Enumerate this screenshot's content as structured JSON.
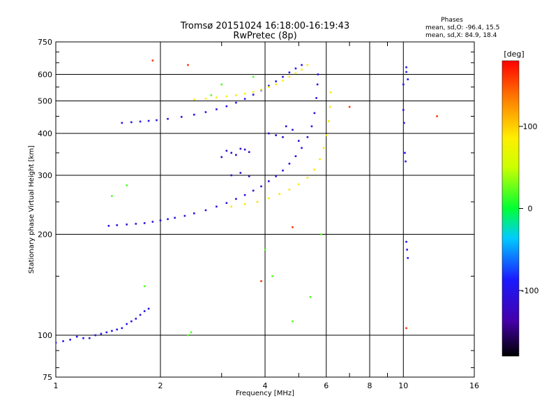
{
  "chart_data": {
    "type": "scatter",
    "title": "Tromsø 20151024 16:18:00-16:19:43",
    "subtitle": "RwPretec (8p)",
    "stats": {
      "heading": "Phases",
      "line_o": "mean, sd,O:  -96.4, 15.5",
      "line_x": "mean, sd,X:  84.9, 18.4"
    },
    "xlabel": "Frequency [MHz]",
    "ylabel": "Stationary phase Virtual Height [km]",
    "x_scale": "log",
    "y_scale": "log",
    "xlim": [
      1,
      16
    ],
    "ylim": [
      75,
      750
    ],
    "x_ticks": [
      1,
      2,
      4,
      6,
      8,
      10,
      16
    ],
    "x_tick_labels": [
      "1",
      "2",
      "4",
      "6",
      "8",
      "10",
      "16"
    ],
    "x_minor_ticks": [
      3,
      5,
      7,
      9
    ],
    "y_ticks": [
      75,
      100,
      200,
      300,
      400,
      500,
      600,
      750
    ],
    "y_tick_labels": [
      "75",
      "100",
      "200",
      "300",
      "400",
      "500",
      "600",
      "750"
    ],
    "grid": true,
    "colorbar": {
      "label": "[deg]",
      "range": [
        -180,
        180
      ],
      "ticks": [
        -100,
        0,
        100
      ],
      "tick_labels": [
        "-100",
        "0",
        "100"
      ]
    },
    "series": [
      {
        "color_value": -100,
        "x": [
          1.0,
          1.05,
          1.1,
          1.15,
          1.2,
          1.25,
          1.3,
          1.35,
          1.4,
          1.45,
          1.5,
          1.55,
          1.6,
          1.65,
          1.7,
          1.75,
          1.8,
          1.85
        ],
        "y": [
          95,
          96,
          97,
          99,
          98,
          98,
          100,
          101,
          102,
          103,
          104,
          105,
          108,
          110,
          112,
          115,
          118,
          120
        ]
      },
      {
        "color_value": -105,
        "x": [
          1.42,
          1.5,
          1.6,
          1.7,
          1.8,
          1.9,
          2.0,
          2.1,
          2.2,
          2.35,
          2.5,
          2.7,
          2.9,
          3.1,
          3.3,
          3.5,
          3.7,
          3.9,
          4.1,
          4.3,
          4.5,
          4.7,
          4.9,
          5.1,
          5.3,
          5.45,
          5.55,
          5.62,
          5.66,
          5.68
        ],
        "y": [
          212,
          213,
          214,
          215,
          216,
          218,
          220,
          222,
          224,
          227,
          231,
          236,
          242,
          248,
          255,
          262,
          270,
          278,
          288,
          298,
          310,
          325,
          342,
          362,
          390,
          420,
          460,
          510,
          560,
          600
        ]
      },
      {
        "color_value": 90,
        "x": [
          3.2,
          3.5,
          3.8,
          4.1,
          4.4,
          4.7,
          5.0,
          5.3,
          5.55,
          5.75,
          5.9,
          6.0,
          6.1,
          6.15,
          6.18
        ],
        "y": [
          242,
          246,
          250,
          256,
          264,
          272,
          282,
          295,
          312,
          335,
          362,
          395,
          435,
          480,
          530
        ]
      },
      {
        "color_value": -100,
        "x": [
          1.55,
          1.65,
          1.75,
          1.85,
          1.95,
          2.1,
          2.3,
          2.5,
          2.7,
          2.9,
          3.1,
          3.3,
          3.5,
          3.7,
          3.9,
          4.1,
          4.3,
          4.5,
          4.7,
          4.9,
          5.1
        ],
        "y": [
          430,
          432,
          434,
          436,
          438,
          442,
          448,
          455,
          463,
          472,
          482,
          494,
          507,
          522,
          538,
          555,
          572,
          590,
          608,
          625,
          640
        ]
      },
      {
        "color_value": 85,
        "x": [
          2.5,
          2.7,
          2.9,
          3.1,
          3.3,
          3.5,
          3.7,
          3.9,
          4.1,
          4.3,
          4.5,
          4.7,
          4.9,
          5.1,
          5.3
        ],
        "y": [
          505,
          508,
          512,
          516,
          520,
          526,
          532,
          540,
          550,
          560,
          575,
          590,
          605,
          620,
          640
        ]
      },
      {
        "color_value": -95,
        "x": [
          10.0,
          10.0,
          10.05,
          10.1,
          10.15,
          10.2,
          10.2,
          10.3,
          10.2,
          10.25,
          10.3
        ],
        "y": [
          560,
          470,
          430,
          350,
          330,
          610,
          630,
          580,
          190,
          180,
          170
        ]
      },
      {
        "color_value": -120,
        "x": [
          3.0,
          3.1,
          3.2,
          3.3,
          3.4,
          3.5,
          3.6,
          3.2,
          3.4,
          3.6,
          4.1,
          4.3,
          4.5,
          4.6,
          4.8,
          5.0
        ],
        "y": [
          340,
          355,
          350,
          345,
          360,
          358,
          352,
          300,
          305,
          298,
          400,
          395,
          390,
          420,
          410,
          380
        ]
      },
      {
        "color_value": 20,
        "x": [
          1.45,
          1.6,
          1.8,
          2.4,
          2.45,
          4.0,
          4.2,
          4.8,
          5.4,
          5.8,
          2.8,
          3.0,
          3.7
        ],
        "y": [
          260,
          280,
          140,
          100,
          102,
          180,
          150,
          110,
          130,
          200,
          520,
          560,
          590
        ]
      },
      {
        "color_value": 160,
        "x": [
          1.9,
          2.4,
          3.9,
          4.8,
          7.0,
          12.5,
          10.2
        ],
        "y": [
          660,
          640,
          145,
          210,
          480,
          450,
          105
        ]
      }
    ]
  }
}
